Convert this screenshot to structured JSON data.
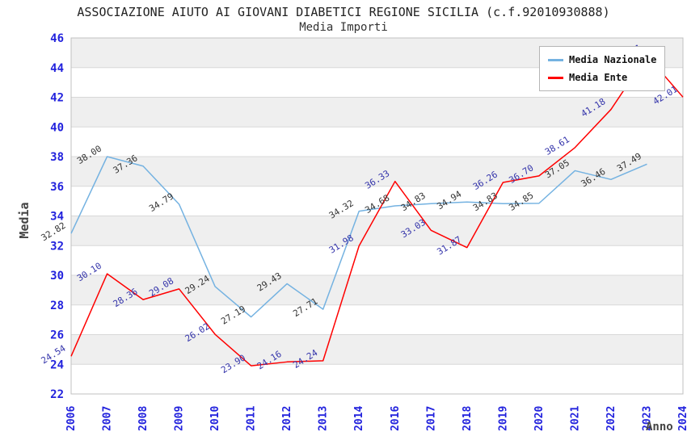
{
  "header": {
    "title": "ASSOCIAZIONE AIUTO AI GIOVANI DIABETICI REGIONE SICILIA (c.f.92010930888)",
    "subtitle": "Media Importi"
  },
  "chart_data": {
    "type": "line",
    "title": "ASSOCIAZIONE AIUTO AI GIOVANI DIABETICI REGIONE SICILIA (c.f.92010930888)",
    "subtitle": "Media Importi",
    "categories": [
      "2006",
      "2007",
      "2008",
      "2009",
      "2010",
      "2011",
      "2012",
      "2013",
      "2014",
      "2016",
      "2017",
      "2018",
      "2019",
      "2020",
      "2021",
      "2022",
      "2023",
      "2024"
    ],
    "series": [
      {
        "name": "Media Nazionale",
        "color": "#74b2e1",
        "label_color": "#333333",
        "values": [
          32.82,
          38.0,
          37.36,
          34.79,
          29.24,
          27.19,
          29.43,
          27.71,
          34.32,
          34.68,
          34.83,
          34.94,
          34.83,
          34.85,
          37.05,
          36.46,
          37.49,
          null
        ]
      },
      {
        "name": "Media Ente",
        "color": "#ff0000",
        "label_color": "#3333aa",
        "values": [
          24.54,
          30.1,
          28.36,
          29.08,
          26.02,
          23.9,
          24.16,
          24.24,
          31.98,
          36.33,
          33.03,
          31.87,
          36.26,
          36.7,
          38.61,
          41.18,
          44.81,
          42.01
        ]
      }
    ],
    "xlabel": "Anno",
    "ylabel": "Media",
    "ylim": [
      22,
      46
    ],
    "y_ticks": [
      22,
      24,
      26,
      28,
      30,
      32,
      34,
      36,
      38,
      40,
      42,
      44,
      46
    ],
    "label_decimals": 2,
    "legend_position": "top-right",
    "grid": "horizontal gridlines at each tick with alternating gray/white bands, gray band at top (44-46)"
  },
  "style": {
    "tick_label_color": "#2222dd",
    "band_color": "#efefef",
    "band_alt_color": "#ffffff",
    "grid_color": "#d8d8d8",
    "plot_border_color": "#c0c0c0",
    "axis_title_color": "#444444",
    "title_color": "#222222"
  }
}
